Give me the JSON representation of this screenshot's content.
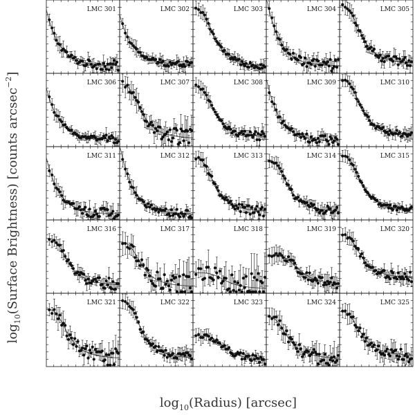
{
  "figure": {
    "ylabel_main": "log",
    "ylabel_sub": "10",
    "ylabel_rest": "(Surface Brightness) [counts arcsec",
    "ylabel_sup": "−2",
    "ylabel_end": "]",
    "xlabel_main": "log",
    "xlabel_sub": "10",
    "xlabel_rest": "(Radius) [arcsec]"
  },
  "chart_data": [
    {
      "type": "scatter",
      "label": "LMC 301",
      "shape": "steep",
      "fit_level": 0.62,
      "noise": 0.1,
      "drop": 0.1
    },
    {
      "type": "scatter",
      "label": "LMC 302",
      "shape": "steep",
      "fit_level": 0.55,
      "noise": 0.08,
      "drop": 0.12
    },
    {
      "type": "scatter",
      "label": "LMC 303",
      "shape": "core",
      "fit_level": 0.78,
      "noise": 0.07,
      "drop": 0.08
    },
    {
      "type": "scatter",
      "label": "LMC 304",
      "shape": "steep",
      "fit_level": 0.8,
      "noise": 0.12,
      "drop": 0.1
    },
    {
      "type": "scatter",
      "label": "LMC 305",
      "shape": "core",
      "fit_level": 0.82,
      "noise": 0.1,
      "drop": 0.12
    },
    {
      "type": "scatter",
      "label": "LMC 306",
      "shape": "steep",
      "fit_level": 0.55,
      "noise": 0.08,
      "drop": 0.1
    },
    {
      "type": "scatter",
      "label": "LMC 307",
      "shape": "core",
      "fit_level": 0.75,
      "noise": 0.18,
      "drop": 0.1
    },
    {
      "type": "scatter",
      "label": "LMC 308",
      "shape": "core",
      "fit_level": 0.72,
      "noise": 0.09,
      "drop": 0.12
    },
    {
      "type": "scatter",
      "label": "LMC 309",
      "shape": "steep",
      "fit_level": 0.68,
      "noise": 0.1,
      "drop": 0.08
    },
    {
      "type": "scatter",
      "label": "LMC 310",
      "shape": "core",
      "fit_level": 0.82,
      "noise": 0.07,
      "drop": 0.14
    },
    {
      "type": "scatter",
      "label": "LMC 311",
      "shape": "steep",
      "fit_level": 0.6,
      "noise": 0.12,
      "drop": 0.08
    },
    {
      "type": "scatter",
      "label": "LMC 312",
      "shape": "steep",
      "fit_level": 0.78,
      "noise": 0.08,
      "drop": 0.08
    },
    {
      "type": "scatter",
      "label": "LMC 313",
      "shape": "core",
      "fit_level": 0.75,
      "noise": 0.1,
      "drop": 0.1
    },
    {
      "type": "scatter",
      "label": "LMC 314",
      "shape": "core",
      "fit_level": 0.72,
      "noise": 0.09,
      "drop": 0.1
    },
    {
      "type": "scatter",
      "label": "LMC 315",
      "shape": "core",
      "fit_level": 0.78,
      "noise": 0.05,
      "drop": 0.12
    },
    {
      "type": "scatter",
      "label": "LMC 316",
      "shape": "core",
      "fit_level": 0.65,
      "noise": 0.12,
      "drop": 0.1
    },
    {
      "type": "scatter",
      "label": "LMC 317",
      "shape": "core",
      "fit_level": 0.6,
      "noise": 0.22,
      "drop": 0.08
    },
    {
      "type": "scatter",
      "label": "LMC 318",
      "shape": "flat",
      "fit_level": 0.28,
      "noise": 0.3,
      "drop": 0.06
    },
    {
      "type": "scatter",
      "label": "LMC 319",
      "shape": "flat",
      "fit_level": 0.52,
      "noise": 0.12,
      "drop": 0.12
    },
    {
      "type": "scatter",
      "label": "LMC 320",
      "shape": "core",
      "fit_level": 0.7,
      "noise": 0.1,
      "drop": 0.2
    },
    {
      "type": "scatter",
      "label": "LMC 321",
      "shape": "core",
      "fit_level": 0.68,
      "noise": 0.18,
      "drop": 0.1
    },
    {
      "type": "scatter",
      "label": "LMC 322",
      "shape": "core",
      "fit_level": 0.8,
      "noise": 0.1,
      "drop": 0.1
    },
    {
      "type": "scatter",
      "label": "LMC 323",
      "shape": "flat",
      "fit_level": 0.42,
      "noise": 0.08,
      "drop": 0.08
    },
    {
      "type": "scatter",
      "label": "LMC 324",
      "shape": "core",
      "fit_level": 0.58,
      "noise": 0.18,
      "drop": 0.1
    },
    {
      "type": "scatter",
      "label": "LMC 325",
      "shape": "core",
      "fit_level": 0.65,
      "noise": 0.14,
      "drop": 0.14
    }
  ]
}
